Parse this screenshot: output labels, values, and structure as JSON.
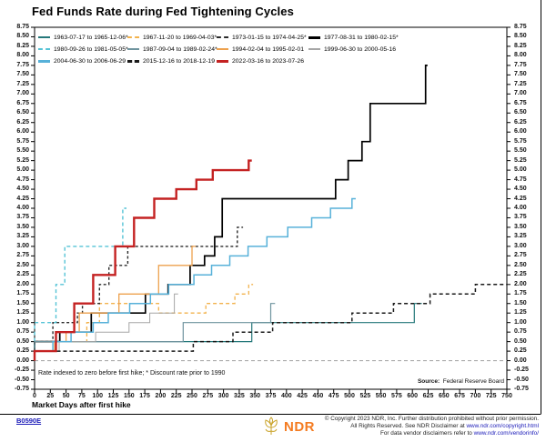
{
  "header": {
    "title": "Fed Funds Rate during Fed Tightening Cycles"
  },
  "chart_data": {
    "type": "line",
    "title": "Fed Funds Rate during Fed Tightening Cycles",
    "xlabel": "Market Days after first hike",
    "ylabel": "",
    "xlim": [
      0,
      750
    ],
    "ylim": [
      -0.75,
      8.75
    ],
    "x_ticks": [
      0,
      25,
      50,
      75,
      100,
      125,
      150,
      175,
      200,
      225,
      250,
      275,
      300,
      325,
      350,
      375,
      400,
      425,
      450,
      475,
      500,
      525,
      550,
      575,
      600,
      625,
      650,
      675,
      700,
      725,
      750
    ],
    "y_ticks": [
      "8.75",
      "8.50",
      "8.25",
      "8.00",
      "7.75",
      "7.50",
      "7.25",
      "7.00",
      "6.75",
      "6.50",
      "6.25",
      "6.00",
      "5.75",
      "5.50",
      "5.25",
      "5.00",
      "4.75",
      "4.50",
      "4.25",
      "4.00",
      "3.75",
      "3.50",
      "3.25",
      "3.00",
      "2.75",
      "2.50",
      "2.25",
      "2.00",
      "1.75",
      "1.50",
      "1.25",
      "1.00",
      "0.75",
      "0.50",
      "0.25",
      "0.00",
      "-0.25",
      "-0.50",
      "-0.75"
    ],
    "grid": false,
    "legend_position": "top-inside",
    "zero_reference_line": 0.0,
    "series": [
      {
        "name": "1963-07-17 to 1965-12-06*",
        "color": "#25787a",
        "dash": null,
        "width": 1.2,
        "points": [
          [
            0,
            0.5
          ],
          [
            345,
            1.0
          ],
          [
            603,
            1.5
          ],
          [
            615,
            1.5
          ]
        ]
      },
      {
        "name": "1967-11-20 to 1969-04-03*",
        "color": "#f2b24c",
        "dash": "4,3",
        "width": 1.3,
        "points": [
          [
            0,
            0.5
          ],
          [
            83,
            1.0
          ],
          [
            103,
            1.5
          ],
          [
            197,
            1.25
          ],
          [
            272,
            1.5
          ],
          [
            318,
            1.75
          ],
          [
            340,
            2.0
          ],
          [
            347,
            2.0
          ]
        ]
      },
      {
        "name": "1973-01-15 to 1974-04-25*",
        "color": "#2b2b2b",
        "dash": "3,2.5",
        "width": 1.4,
        "points": [
          [
            0,
            0.5
          ],
          [
            29,
            1.0
          ],
          [
            68,
            1.25
          ],
          [
            76,
            1.5
          ],
          [
            103,
            2.0
          ],
          [
            118,
            2.5
          ],
          [
            148,
            3.0
          ],
          [
            322,
            3.5
          ],
          [
            331,
            3.5
          ]
        ]
      },
      {
        "name": "1977-08-31 to 1980-02-15*",
        "color": "#000000",
        "dash": null,
        "width": 1.7,
        "points": [
          [
            0,
            0.5
          ],
          [
            40,
            0.75
          ],
          [
            90,
            1.25
          ],
          [
            176,
            1.75
          ],
          [
            212,
            2.0
          ],
          [
            247,
            2.5
          ],
          [
            270,
            2.75
          ],
          [
            286,
            3.25
          ],
          [
            298,
            4.25
          ],
          [
            478,
            4.75
          ],
          [
            498,
            5.25
          ],
          [
            520,
            5.75
          ],
          [
            533,
            6.75
          ],
          [
            621,
            7.75
          ],
          [
            624,
            7.75
          ]
        ]
      },
      {
        "name": "1980-09-26 to 1981-05-05*",
        "color": "#55c3d6",
        "dash": "4,3",
        "width": 1.4,
        "points": [
          [
            0,
            1.0
          ],
          [
            34,
            2.0
          ],
          [
            48,
            3.0
          ],
          [
            140,
            4.0
          ],
          [
            146,
            4.0
          ]
        ]
      },
      {
        "name": "1987-09-04 to 1989-02-24*",
        "color": "#6f949e",
        "dash": null,
        "width": 1.2,
        "points": [
          [
            0,
            0.5
          ],
          [
            236,
            1.0
          ],
          [
            375,
            1.5
          ],
          [
            382,
            1.5
          ]
        ]
      },
      {
        "name": "1994-02-04 to 1995-02-01",
        "color": "#eda14d",
        "dash": null,
        "width": 1.3,
        "points": [
          [
            0,
            0.25
          ],
          [
            32,
            0.5
          ],
          [
            50,
            0.75
          ],
          [
            71,
            1.25
          ],
          [
            134,
            1.75
          ],
          [
            197,
            2.5
          ],
          [
            250,
            3.0
          ],
          [
            256,
            3.0
          ]
        ]
      },
      {
        "name": "1999-06-30 to 2000-05-16",
        "color": "#a6a6a6",
        "dash": null,
        "width": 1.0,
        "points": [
          [
            0,
            0.25
          ],
          [
            39,
            0.5
          ],
          [
            97,
            0.75
          ],
          [
            150,
            1.0
          ],
          [
            183,
            1.25
          ],
          [
            222,
            1.75
          ],
          [
            228,
            1.75
          ]
        ]
      },
      {
        "name": "2004-06-30 to 2006-06-29",
        "color": "#57b1d9",
        "dash": null,
        "width": 1.5,
        "points": [
          [
            0,
            0.25
          ],
          [
            29,
            0.5
          ],
          [
            58,
            0.75
          ],
          [
            93,
            1.0
          ],
          [
            117,
            1.25
          ],
          [
            151,
            1.5
          ],
          [
            184,
            1.75
          ],
          [
            213,
            2.0
          ],
          [
            253,
            2.25
          ],
          [
            281,
            2.5
          ],
          [
            310,
            2.75
          ],
          [
            339,
            3.0
          ],
          [
            369,
            3.25
          ],
          [
            402,
            3.5
          ],
          [
            440,
            3.75
          ],
          [
            470,
            4.0
          ],
          [
            504,
            4.25
          ],
          [
            510,
            4.25
          ]
        ]
      },
      {
        "name": "2015-12-16 to 2018-12-19",
        "color": "#1a1a1a",
        "dash": "4,3",
        "width": 1.5,
        "points": [
          [
            0,
            0.25
          ],
          [
            252,
            0.5
          ],
          [
            315,
            0.75
          ],
          [
            378,
            1.0
          ],
          [
            504,
            1.25
          ],
          [
            570,
            1.5
          ],
          [
            628,
            1.75
          ],
          [
            700,
            2.0
          ],
          [
            750,
            2.0
          ]
        ]
      },
      {
        "name": "2022-03-16 to 2023-07-26",
        "color": "#c42222",
        "dash": null,
        "width": 2.4,
        "points": [
          [
            0,
            0.25
          ],
          [
            34,
            0.75
          ],
          [
            63,
            1.5
          ],
          [
            93,
            2.25
          ],
          [
            128,
            3.0
          ],
          [
            158,
            3.75
          ],
          [
            190,
            4.25
          ],
          [
            225,
            4.5
          ],
          [
            257,
            4.75
          ],
          [
            283,
            5.0
          ],
          [
            340,
            5.25
          ],
          [
            345,
            5.25
          ]
        ]
      }
    ],
    "annotations": {
      "footnote": "Rate indexed to zero before first hike; * Discount rate prior to 1990",
      "source_label": "Source:",
      "source_value": "Federal Reserve Board"
    }
  },
  "footer": {
    "chart_code": "B0590E",
    "logo_text": "NDR",
    "copyright_lines": [
      {
        "text": "© Copyright 2023 NDR, Inc. Further distribution prohibited without prior permission.",
        "link": ""
      },
      {
        "text": "All Rights Reserved. See NDR Disclaimer at ",
        "link": "www.ndr.com/copyright.html"
      },
      {
        "text": "For data vendor disclaimers refer to ",
        "link": "www.ndr.com/vendorinfo/"
      }
    ]
  }
}
